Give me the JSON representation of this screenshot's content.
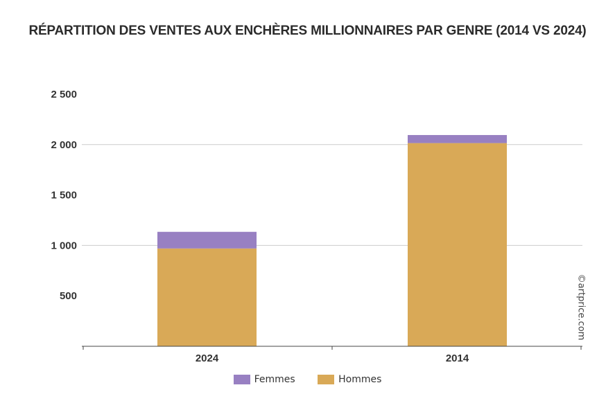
{
  "chart_data": {
    "type": "bar",
    "stacked": true,
    "title": "RÉPARTITION DES VENTES AUX ENCHÈRES MILLIONNAIRES PAR GENRE (2014 VS 2024)",
    "categories": [
      "2024",
      "2014"
    ],
    "series": [
      {
        "name": "Hommes",
        "values": [
          970,
          2015
        ],
        "color": "#D9A957"
      },
      {
        "name": "Femmes",
        "values": [
          165,
          80
        ],
        "color": "#9880C2"
      }
    ],
    "ylim": [
      0,
      2500
    ],
    "yticks": [
      500,
      1000,
      1500,
      2000,
      2500
    ],
    "ytick_labels": [
      "500",
      "1 000",
      "1 500",
      "2 000",
      "2 500"
    ],
    "grid": true,
    "legend": "bottom",
    "credit": "©artprice.com"
  }
}
